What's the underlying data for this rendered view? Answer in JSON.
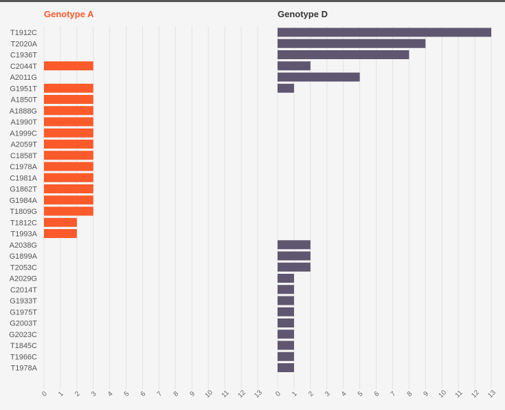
{
  "chart_data": {
    "type": "bar",
    "orientation": "horizontal",
    "xlim": [
      0,
      13
    ],
    "ticks": [
      0,
      1,
      2,
      3,
      4,
      5,
      6,
      7,
      8,
      9,
      10,
      11,
      12,
      13
    ],
    "categories": [
      "T1912C",
      "T2020A",
      "C1936T",
      "C2044T",
      "A2011G",
      "G1951T",
      "A1850T",
      "A1888G",
      "A1990T",
      "A1999C",
      "A2059T",
      "C1858T",
      "C1978A",
      "C1981A",
      "G1862T",
      "G1984A",
      "T1809G",
      "T1812C",
      "T1993A",
      "A2038G",
      "G1899A",
      "T2053C",
      "A2029G",
      "C2014T",
      "G1933T",
      "G1975T",
      "G2003T",
      "G2023C",
      "T1845C",
      "T1966C",
      "T1978A"
    ],
    "series": [
      {
        "name": "Genotype A",
        "color": "#fb5a2b",
        "values": [
          0,
          0,
          0,
          3,
          0,
          3,
          3,
          3,
          3,
          3,
          3,
          3,
          3,
          3,
          3,
          3,
          3,
          2,
          2,
          0,
          0,
          0,
          0,
          0,
          0,
          0,
          0,
          0,
          0,
          0,
          0
        ]
      },
      {
        "name": "Genotype D",
        "color": "#5f5670",
        "values": [
          13,
          9,
          8,
          2,
          5,
          1,
          0,
          0,
          0,
          0,
          0,
          0,
          0,
          0,
          0,
          0,
          0,
          0,
          0,
          2,
          2,
          2,
          1,
          1,
          1,
          1,
          1,
          1,
          1,
          1,
          1
        ]
      }
    ]
  }
}
